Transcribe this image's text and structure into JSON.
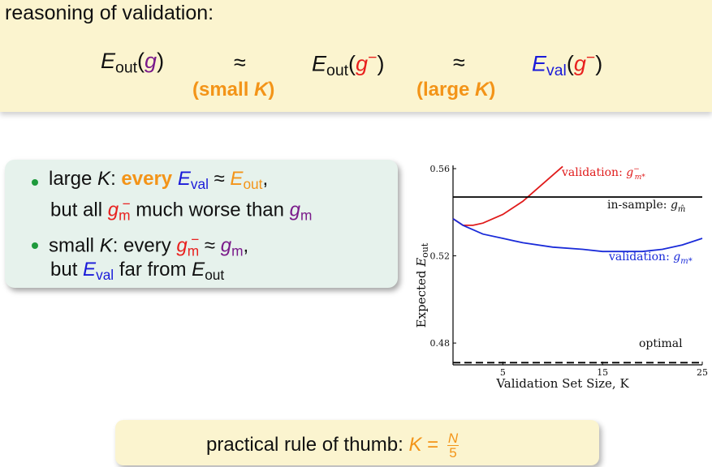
{
  "heading": "reasoning of validation:",
  "equation": {
    "approx_symbol": "≈",
    "left_condition": "(small K)",
    "right_condition": "(large K)"
  },
  "bullets": [
    {
      "line1_prefix": "large",
      "line1_bold": "every",
      "line2_prefix": "but all",
      "line2_mid": "much worse than"
    },
    {
      "line1_prefix": "small",
      "line1_mid": "every",
      "line2_prefix": "but",
      "line2_mid": "far from"
    }
  ],
  "rule_of_thumb": {
    "text": "practical rule of thumb:",
    "numerator": "N",
    "denominator": "5"
  },
  "chart_data": {
    "type": "line",
    "xlabel": "Validation Set Size, K",
    "ylabel": "Expected E_out",
    "xlim": [
      0,
      25
    ],
    "ylim": [
      0.47,
      0.56
    ],
    "x_ticks": [
      5,
      15,
      25
    ],
    "y_ticks": [
      0.48,
      0.52,
      0.56
    ],
    "series": [
      {
        "name": "validation: g⁻_{m*}",
        "color": "#e01b1b",
        "x": [
          0,
          1,
          2,
          3,
          4,
          5,
          6,
          7,
          8,
          9,
          10,
          11
        ],
        "y": [
          0.537,
          0.534,
          0.534,
          0.535,
          0.537,
          0.539,
          0.542,
          0.545,
          0.549,
          0.553,
          0.557,
          0.561
        ]
      },
      {
        "name": "in-sample: g_{m̂}",
        "color": "#000000",
        "x": [
          0,
          25
        ],
        "y": [
          0.547,
          0.547
        ]
      },
      {
        "name": "validation: g_{m*}",
        "color": "#1a2bd9",
        "x": [
          0,
          1,
          2,
          3,
          5,
          7,
          10,
          13,
          15,
          17,
          19,
          21,
          23,
          25
        ],
        "y": [
          0.537,
          0.534,
          0.532,
          0.53,
          0.528,
          0.526,
          0.524,
          0.523,
          0.522,
          0.522,
          0.522,
          0.523,
          0.525,
          0.528
        ]
      },
      {
        "name": "optimal",
        "color": "#000000",
        "dashed": true,
        "x": [
          0,
          25
        ],
        "y": [
          0.471,
          0.471
        ]
      }
    ]
  }
}
